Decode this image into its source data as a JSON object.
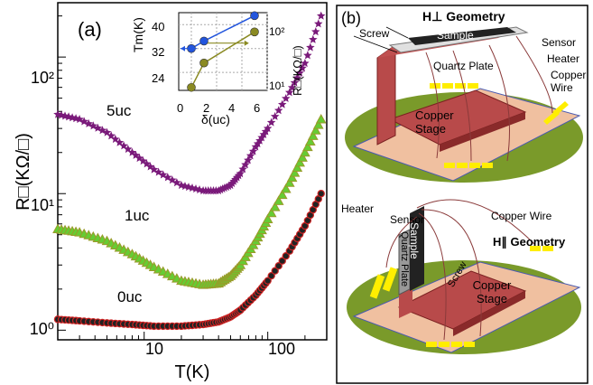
{
  "panel_a": {
    "label": "(a)",
    "xlabel": "T(K)",
    "ylabel": "R□(KΩ/□)",
    "xticks": [
      "10",
      "100"
    ],
    "yticks": [
      "10⁰",
      "10¹",
      "10²"
    ],
    "curve_labels": {
      "uc5": "5uc",
      "uc1": "1uc",
      "uc0": "0uc"
    },
    "colors": {
      "uc5": "#7a1a7a",
      "uc1": "#9a9a2a",
      "uc1_fill": "#66cc33",
      "uc0": "#cc2222",
      "uc0_fill": "#222222"
    }
  },
  "inset": {
    "ylabel": "Tm(K)",
    "y2label": "R□(KΩ/□)",
    "xlabel": "δ(uc)",
    "xticks": [
      "0",
      "2",
      "4",
      "6"
    ],
    "yticks": [
      "24",
      "32",
      "40"
    ],
    "y2ticks": [
      "10¹",
      "10²"
    ]
  },
  "chart_data": [
    {
      "type": "scatter",
      "xlabel": "T(K)",
      "ylabel": "R□(KΩ/□)",
      "x_scale": "log",
      "y_scale": "log",
      "xlim": [
        2,
        300
      ],
      "ylim": [
        0.85,
        250
      ],
      "series": [
        {
          "name": "5uc",
          "marker": "star",
          "x": [
            2,
            3,
            5,
            8,
            12,
            20,
            30,
            40,
            50,
            60,
            80,
            100,
            150,
            200,
            270
          ],
          "y": [
            38,
            35,
            28,
            20,
            15,
            11.5,
            10.5,
            10.5,
            11.5,
            14,
            22,
            30,
            55,
            90,
            200
          ]
        },
        {
          "name": "1uc",
          "marker": "triangle",
          "x": [
            2,
            3,
            5,
            8,
            12,
            20,
            30,
            40,
            50,
            60,
            80,
            100,
            150,
            200,
            270
          ],
          "y": [
            5.5,
            5.2,
            4.5,
            3.6,
            2.9,
            2.3,
            2.15,
            2.2,
            2.5,
            3,
            4.5,
            6.5,
            12,
            20,
            35
          ]
        },
        {
          "name": "0uc",
          "marker": "circle",
          "x": [
            2,
            3,
            5,
            8,
            12,
            20,
            30,
            40,
            50,
            60,
            80,
            100,
            150,
            200,
            270
          ],
          "y": [
            1.2,
            1.17,
            1.13,
            1.1,
            1.07,
            1.07,
            1.1,
            1.15,
            1.25,
            1.4,
            1.8,
            2.3,
            3.8,
            5.8,
            10
          ]
        }
      ]
    },
    {
      "type": "scatter",
      "xlabel": "δ(uc)",
      "ylabel": "Tm(K)",
      "y2label": "R□(KΩ/□)",
      "xlim": [
        -1,
        6
      ],
      "ylim": [
        18,
        44
      ],
      "series": [
        {
          "axis": "left",
          "color": "#2255dd",
          "x": [
            0,
            1,
            5
          ],
          "y": [
            32,
            34.5,
            43
          ]
        },
        {
          "axis": "right",
          "color": "#8a8a22",
          "x": [
            0,
            1,
            5
          ],
          "y": [
            1.2,
            5.5,
            38
          ]
        }
      ]
    }
  ],
  "panel_b": {
    "label": "(b)",
    "perp_title": "H⊥ Geometry",
    "par_title": "H∥ Geometry",
    "screw": "Screw",
    "sample": "Sample",
    "sensor": "Sensor",
    "heater": "Heater",
    "copper_wire": "Copper Wire",
    "quartz_plate": "Quartz Plate",
    "copper_stage": "Copper Stage"
  }
}
